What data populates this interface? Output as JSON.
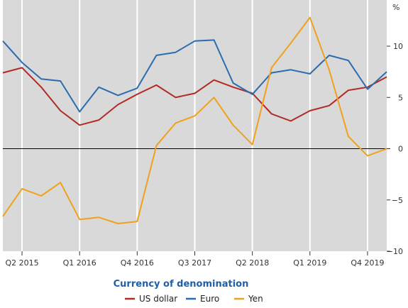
{
  "chart_data": {
    "type": "line",
    "y_unit": "%",
    "ylim": [
      -10,
      14.5
    ],
    "yticks": [
      -10,
      -5,
      0,
      5,
      10
    ],
    "y_axis_side": "right",
    "grid": "vertical",
    "legend_title": "Currency of denomination",
    "legend_placement": "bottom",
    "x": [
      "Q1 2015",
      "Q2 2015",
      "Q3 2015",
      "Q4 2015",
      "Q1 2016",
      "Q2 2016",
      "Q3 2016",
      "Q4 2016",
      "Q1 2017",
      "Q2 2017",
      "Q3 2017",
      "Q4 2017",
      "Q1 2018",
      "Q2 2018",
      "Q3 2018",
      "Q4 2018",
      "Q1 2019",
      "Q2 2019",
      "Q3 2019",
      "Q4 2019",
      "Q1 2020"
    ],
    "xticks": [
      "Q2 2015",
      "Q1 2016",
      "Q4 2016",
      "Q3 2017",
      "Q2 2018",
      "Q1 2019",
      "Q4 2019"
    ],
    "zero_line": true,
    "series": [
      {
        "name": "US dollar",
        "color": "#b22a24",
        "values": [
          7.4,
          7.9,
          6.0,
          3.7,
          2.3,
          2.8,
          4.3,
          5.3,
          6.2,
          5.0,
          5.4,
          6.7,
          6.0,
          5.4,
          3.4,
          2.7,
          3.7,
          4.2,
          5.7,
          6.0,
          7.0
        ]
      },
      {
        "name": "Euro",
        "color": "#2b6cb0",
        "values": [
          10.5,
          8.4,
          6.8,
          6.6,
          3.6,
          6.0,
          5.2,
          5.9,
          9.1,
          9.4,
          10.5,
          10.6,
          6.4,
          5.3,
          7.4,
          7.7,
          7.3,
          9.1,
          8.6,
          5.8,
          7.5
        ]
      },
      {
        "name": "Yen",
        "color": "#f0a11c",
        "values": [
          -6.6,
          -3.9,
          -4.6,
          -3.3,
          -6.9,
          -6.7,
          -7.3,
          -7.1,
          0.3,
          2.5,
          3.2,
          5.0,
          2.3,
          0.4,
          7.9,
          10.3,
          12.8,
          7.7,
          1.2,
          -0.7,
          0.0
        ]
      }
    ]
  }
}
